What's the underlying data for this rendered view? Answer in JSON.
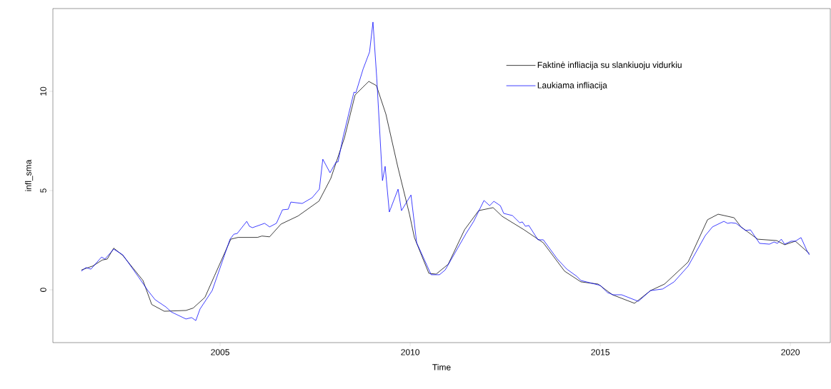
{
  "chart_data": {
    "type": "line",
    "xlabel": "Time",
    "ylabel": "infl_sma",
    "xlim": [
      2000.6,
      2021.05
    ],
    "ylim": [
      -2.66,
      14.17
    ],
    "xticks": [
      2005,
      2010,
      2015,
      2020
    ],
    "yticks": [
      0,
      5,
      10
    ],
    "grid": false,
    "legend": "top right",
    "line_style": "solid",
    "marker": "none",
    "series": [
      {
        "name": "Faktinė infliacija su slankiuoju vidurkiu",
        "color": "#000000",
        "x": [
          2001.35,
          2001.65,
          2001.9,
          2002.03,
          2002.2,
          2002.44,
          2002.97,
          2003.2,
          2003.53,
          2004.1,
          2004.29,
          2004.6,
          2004.85,
          2005.28,
          2005.47,
          2005.98,
          2006.1,
          2006.3,
          2006.6,
          2007.05,
          2007.6,
          2007.91,
          2008.27,
          2008.55,
          2008.91,
          2009.11,
          2009.36,
          2009.67,
          2009.98,
          2010.11,
          2010.49,
          2010.68,
          2011.0,
          2011.43,
          2011.8,
          2012.18,
          2012.42,
          2012.99,
          2013.5,
          2014.06,
          2014.49,
          2014.94,
          2015.32,
          2015.9,
          2016.32,
          2016.69,
          2017.31,
          2017.82,
          2018.1,
          2018.52,
          2018.7,
          2019.14,
          2019.64,
          2019.85,
          2020.13,
          2020.45,
          2020.5
        ],
        "values": [
          1.0,
          1.2,
          1.5,
          1.55,
          2.1,
          1.73,
          0.47,
          -0.74,
          -1.08,
          -1.04,
          -0.92,
          -0.38,
          0.7,
          2.55,
          2.64,
          2.64,
          2.71,
          2.67,
          3.31,
          3.72,
          4.47,
          5.61,
          7.66,
          9.82,
          10.5,
          10.29,
          8.85,
          6.22,
          3.81,
          2.63,
          0.83,
          0.79,
          1.29,
          3.03,
          3.99,
          4.14,
          3.7,
          3.03,
          2.37,
          0.94,
          0.4,
          0.29,
          -0.25,
          -0.68,
          -0.04,
          0.29,
          1.4,
          3.53,
          3.81,
          3.63,
          3.17,
          2.55,
          2.48,
          2.27,
          2.45,
          1.91,
          1.83
        ]
      },
      {
        "name": "Laukiama infliacija",
        "color": "#0000ff",
        "x": [
          2001.35,
          2001.47,
          2001.6,
          2001.88,
          2001.97,
          2002.2,
          2002.44,
          2002.84,
          2003.1,
          2003.29,
          2003.57,
          2003.72,
          2004.1,
          2004.25,
          2004.36,
          2004.47,
          2004.79,
          2005.26,
          2005.36,
          2005.45,
          2005.7,
          2005.77,
          2005.85,
          2006.17,
          2006.3,
          2006.48,
          2006.64,
          2006.79,
          2006.86,
          2007.16,
          2007.42,
          2007.61,
          2007.7,
          2007.89,
          2008.05,
          2008.1,
          2008.23,
          2008.52,
          2008.57,
          2008.76,
          2008.93,
          2009.02,
          2009.12,
          2009.27,
          2009.34,
          2009.45,
          2009.68,
          2009.77,
          2010.02,
          2010.17,
          2010.55,
          2010.77,
          2010.92,
          2011.47,
          2011.67,
          2011.94,
          2012.09,
          2012.2,
          2012.37,
          2012.46,
          2012.69,
          2012.88,
          2012.95,
          2013.03,
          2013.12,
          2013.36,
          2013.5,
          2013.87,
          2014.12,
          2014.38,
          2014.49,
          2015.0,
          2015.19,
          2015.34,
          2015.56,
          2016.0,
          2016.32,
          2016.64,
          2016.94,
          2017.31,
          2017.76,
          2017.95,
          2018.25,
          2018.35,
          2018.44,
          2018.57,
          2018.82,
          2018.95,
          2019.19,
          2019.45,
          2019.57,
          2019.66,
          2019.76,
          2019.85,
          2020.02,
          2020.13,
          2020.28,
          2020.45,
          2020.5
        ],
        "values": [
          0.94,
          1.12,
          1.04,
          1.65,
          1.55,
          2.05,
          1.76,
          0.68,
          -0.04,
          -0.5,
          -0.86,
          -1.12,
          -1.47,
          -1.4,
          -1.55,
          -0.97,
          -0.04,
          2.55,
          2.8,
          2.84,
          3.45,
          3.2,
          3.13,
          3.35,
          3.17,
          3.35,
          4.03,
          4.06,
          4.42,
          4.35,
          4.64,
          5.07,
          6.58,
          5.9,
          6.44,
          6.44,
          7.66,
          9.96,
          9.93,
          11.12,
          11.98,
          13.49,
          10.65,
          5.5,
          6.22,
          3.92,
          5.07,
          3.99,
          4.78,
          2.37,
          0.76,
          0.76,
          1.0,
          2.84,
          3.45,
          4.5,
          4.24,
          4.46,
          4.24,
          3.85,
          3.74,
          3.38,
          3.42,
          3.2,
          3.24,
          2.52,
          2.52,
          1.55,
          1.04,
          0.68,
          0.47,
          0.22,
          -0.14,
          -0.25,
          -0.25,
          -0.58,
          -0.04,
          0.04,
          0.4,
          1.19,
          2.73,
          3.17,
          3.45,
          3.35,
          3.38,
          3.35,
          2.99,
          3.02,
          2.34,
          2.3,
          2.41,
          2.34,
          2.55,
          2.3,
          2.45,
          2.45,
          2.63,
          1.91,
          1.76
        ]
      }
    ]
  }
}
